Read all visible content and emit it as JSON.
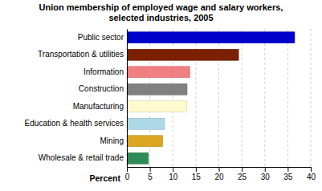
{
  "chart_data": {
    "type": "bar",
    "orientation": "horizontal",
    "title": "Union membership of employed wage and salary workers,\nselected industries, 2005",
    "xlabel": "Percent",
    "categories": [
      "Wholesale & retail trade",
      "Mining",
      "Education & health services",
      "Manufacturing",
      "Construction",
      "Information",
      "Transportation & utilities",
      "Public sector"
    ],
    "values": [
      4.7,
      7.8,
      8.2,
      13.0,
      13.1,
      13.7,
      24.3,
      36.5
    ],
    "colors": [
      "#2e8b57",
      "#daa520",
      "#add8e6",
      "#fffacd",
      "#808080",
      "#f08080",
      "#7b2000",
      "#0000cc"
    ],
    "xlim": [
      0,
      40
    ],
    "xticks": [
      0,
      5,
      10,
      15,
      20,
      25,
      30,
      35,
      40
    ],
    "grid": true
  }
}
